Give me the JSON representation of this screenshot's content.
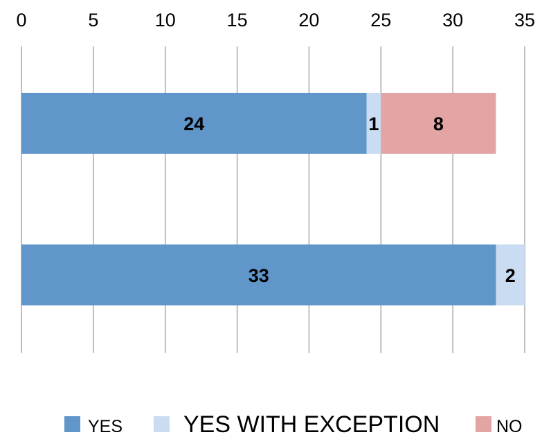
{
  "chart_data": {
    "type": "bar",
    "orientation": "horizontal",
    "stacked": true,
    "categories": [
      "",
      ""
    ],
    "series": [
      {
        "name": "YES",
        "values": [
          24,
          33
        ],
        "color": "#6096C9"
      },
      {
        "name": "YES WITH EXCEPTION",
        "values": [
          1,
          2
        ],
        "color": "#C9DCF1"
      },
      {
        "name": "NO",
        "values": [
          8,
          0
        ],
        "color": "#E3A4A4"
      }
    ],
    "data_labels": [
      [
        "24",
        "33"
      ],
      [
        "1",
        "2"
      ],
      [
        "8",
        ""
      ]
    ],
    "xlim": [
      0,
      35
    ],
    "xticks": [
      0,
      5,
      10,
      15,
      20,
      25,
      30,
      35
    ],
    "xtick_labels": [
      "0",
      "5",
      "10",
      "15",
      "20",
      "25",
      "30",
      "35"
    ],
    "x_axis_position": "top",
    "grid": true,
    "legend_position": "bottom",
    "title": "",
    "xlabel": "",
    "ylabel": ""
  }
}
